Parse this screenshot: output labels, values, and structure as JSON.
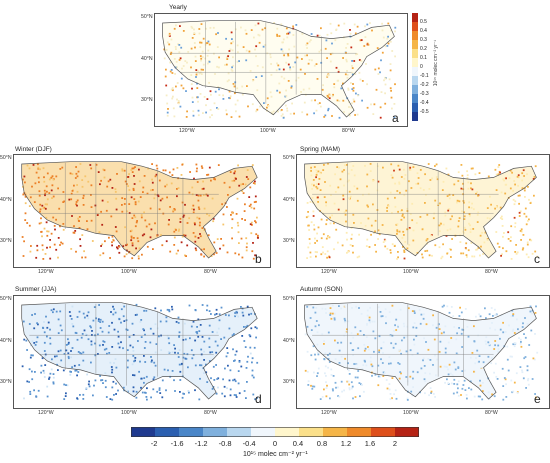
{
  "colorbar_small": {
    "title": "10¹⁵ molec cm⁻² yr⁻¹",
    "ticks": [
      "0.5",
      "0.4",
      "0.3",
      "0.2",
      "0.1",
      "0",
      "-0.1",
      "-0.2",
      "-0.3",
      "-0.4",
      "-0.5"
    ]
  },
  "colorbar_main": {
    "ticks": [
      "-2",
      "-1.6",
      "-1.2",
      "-0.8",
      "-0.4",
      "0",
      "0.4",
      "0.8",
      "1.2",
      "1.6",
      "2"
    ],
    "unit": "10¹⁵ molec cm⁻² yr⁻¹",
    "colors": [
      "#1f3a8f",
      "#2b5fb0",
      "#4a86c8",
      "#7fb0dd",
      "#b9d7ef",
      "#f0f6fc",
      "#fff6cc",
      "#fbe08a",
      "#f5b547",
      "#ef8a2a",
      "#de4f1b",
      "#b52315"
    ]
  },
  "panels": [
    {
      "id": "a",
      "title": "Yearly",
      "label": "a",
      "lat": [
        "50°N",
        "40°N",
        "30°N"
      ],
      "lon": [
        "120°W",
        "100°W",
        "80°W"
      ],
      "map_values": {
        "fill": "#fffbe3",
        "dots_pos": "#f1a33a",
        "dots_neg": "#6aa0d8",
        "hot": "#c62a14",
        "pattern": "mixed-small"
      }
    },
    {
      "id": "b",
      "title": "Winter (DJF)",
      "label": "b",
      "lat": [
        "50°N",
        "40°N",
        "30°N"
      ],
      "lon": [
        "120°W",
        "100°W",
        "80°W"
      ],
      "map_values": {
        "fill": "#f6c46a",
        "dots_pos": "#eb7f27",
        "dots_neg": "#7fb0dd",
        "hot": "#b52315",
        "pattern": "strong-positive"
      }
    },
    {
      "id": "c",
      "title": "Spring (MAM)",
      "label": "c",
      "lat": [
        "50°N",
        "40°N",
        "30°N"
      ],
      "lon": [
        "120°W",
        "100°W",
        "80°W"
      ],
      "map_values": {
        "fill": "#fdebb2",
        "dots_pos": "#f4b447",
        "dots_neg": "#b9d7ef",
        "hot": "#cf3e18",
        "pattern": "moderate-positive"
      }
    },
    {
      "id": "d",
      "title": "Summer (JJA)",
      "label": "d",
      "lat": [
        "50°N",
        "40°N",
        "30°N"
      ],
      "lon": [
        "120°W",
        "100°W",
        "80°W"
      ],
      "map_values": {
        "fill": "#cfe4f5",
        "dots_pos": "#fbe08a",
        "dots_neg": "#5a93cf",
        "hot": "#2b5fb0",
        "pattern": "negative"
      }
    },
    {
      "id": "e",
      "title": "Autumn (SON)",
      "label": "e",
      "lat": [
        "50°N",
        "40°N",
        "30°N"
      ],
      "lon": [
        "120°W",
        "100°W",
        "80°W"
      ],
      "map_values": {
        "fill": "#e3eff9",
        "dots_pos": "#f5b547",
        "dots_neg": "#7fb0dd",
        "hot": "#c62a14",
        "pattern": "weak-negative"
      }
    }
  ],
  "colorbar_small_colors": [
    "#b52315",
    "#de4f1b",
    "#ef8a2a",
    "#f5b547",
    "#fbe08a",
    "#fff6cc",
    "#f0f6fc",
    "#b9d7ef",
    "#7fb0dd",
    "#4a86c8",
    "#2b5fb0",
    "#1f3a8f"
  ]
}
